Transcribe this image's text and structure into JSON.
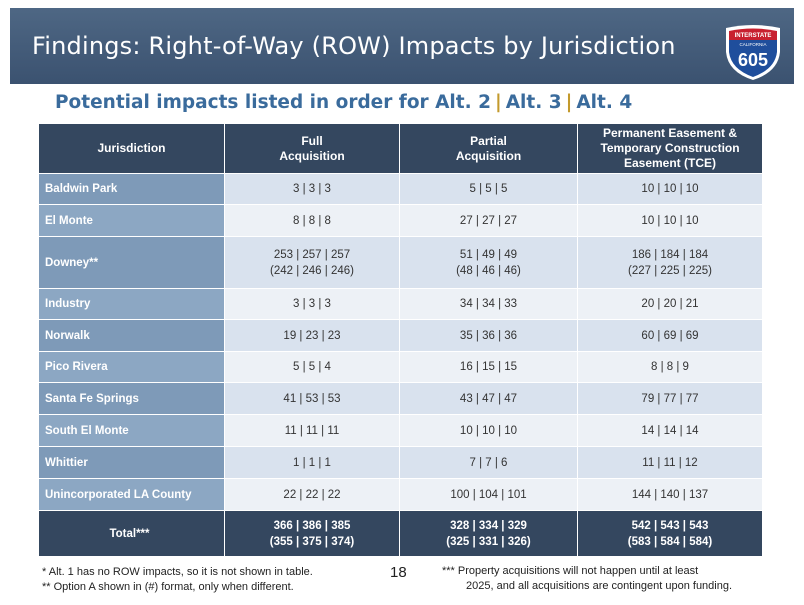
{
  "header": {
    "title": "Findings: Right-of-Way (ROW) Impacts by Jurisdiction",
    "shield_top_text": "INTERSTATE",
    "shield_state_text": "CALIFORNIA",
    "shield_number": "605"
  },
  "subtitle": {
    "lead": "Potential impacts listed in order for Alt. 2",
    "separator": "|",
    "alt3": "Alt. 3",
    "alt4": "Alt. 4"
  },
  "table": {
    "headers": {
      "jurisdiction": "Jurisdiction",
      "full_line1": "Full",
      "full_line2": "Acquisition",
      "partial_line1": "Partial",
      "partial_line2": "Acquisition",
      "easement_line1": "Permanent Easement &",
      "easement_line2": "Temporary Construction",
      "easement_line3": "Easement (TCE)"
    },
    "rows": [
      {
        "name": "Baldwin Park",
        "full": "3 |  3  | 3",
        "partial": "5 |  5  | 5",
        "easement": "10 |  10 | 10"
      },
      {
        "name": "El Monte",
        "full": "8 |  8  | 8",
        "partial": "27 | 27 | 27",
        "easement": "10 |  10 | 10"
      },
      {
        "name": "Downey**",
        "full": "253 | 257 | 257",
        "full_alt": "(242 | 246 | 246)",
        "partial": "51 | 49  | 49",
        "partial_alt": "(48 | 46  | 46)",
        "easement": "186 | 184 | 184",
        "easement_alt": "(227 | 225 | 225)"
      },
      {
        "name": "Industry",
        "full": "3 |  3  | 3",
        "partial": "34 | 34 | 33",
        "easement": "20 |  20 | 21"
      },
      {
        "name": "Norwalk",
        "full": "19 |  23 | 23",
        "partial": "35 | 36 | 36",
        "easement": "60 |  69 | 69"
      },
      {
        "name": "Pico Rivera",
        "full": "5 |  5  | 4",
        "partial": "16 | 15 | 15",
        "easement": "8 |  8  | 9"
      },
      {
        "name": "Santa Fe Springs",
        "full": "41 | 53 | 53",
        "partial": "43 | 47 | 47",
        "easement": "79 | 77 | 77"
      },
      {
        "name": "South El Monte",
        "full": "11 | 11 | 11",
        "partial": "10 | 10 | 10",
        "easement": "14 |  14 | 14"
      },
      {
        "name": "Whittier",
        "full": "1 |  1  | 1",
        "partial": "7 |  7  | 6",
        "easement": "11 |  11 | 12"
      },
      {
        "name": "Unincorporated LA County",
        "full": "22 | 22 | 22",
        "partial": "100 | 104 | 101",
        "easement": "144 | 140 | 137"
      }
    ],
    "total": {
      "name": "Total***",
      "full": "366 | 386 | 385",
      "full_alt": "(355 | 375 | 374)",
      "partial": "328 | 334 | 329",
      "partial_alt": "(325 | 331 | 326)",
      "easement": "542 | 543 | 543",
      "easement_alt": "(583 | 584 | 584)"
    }
  },
  "footer": {
    "note1": "*   Alt. 1 has no ROW impacts, so it is not shown in table.",
    "note2": "** Option A shown in (#) format, only when different.",
    "page_number": "18",
    "note3_line1": "*** Property acquisitions will not happen until at least",
    "note3_line2": "2025, and all acquisitions are contingent upon funding."
  },
  "colors": {
    "title_bar": "#3e5573",
    "header_cell": "#34475f",
    "jurisdiction_cell": "#7f9bb9",
    "subtitle_text": "#3a6b9c",
    "separator": "#c39a2c"
  }
}
